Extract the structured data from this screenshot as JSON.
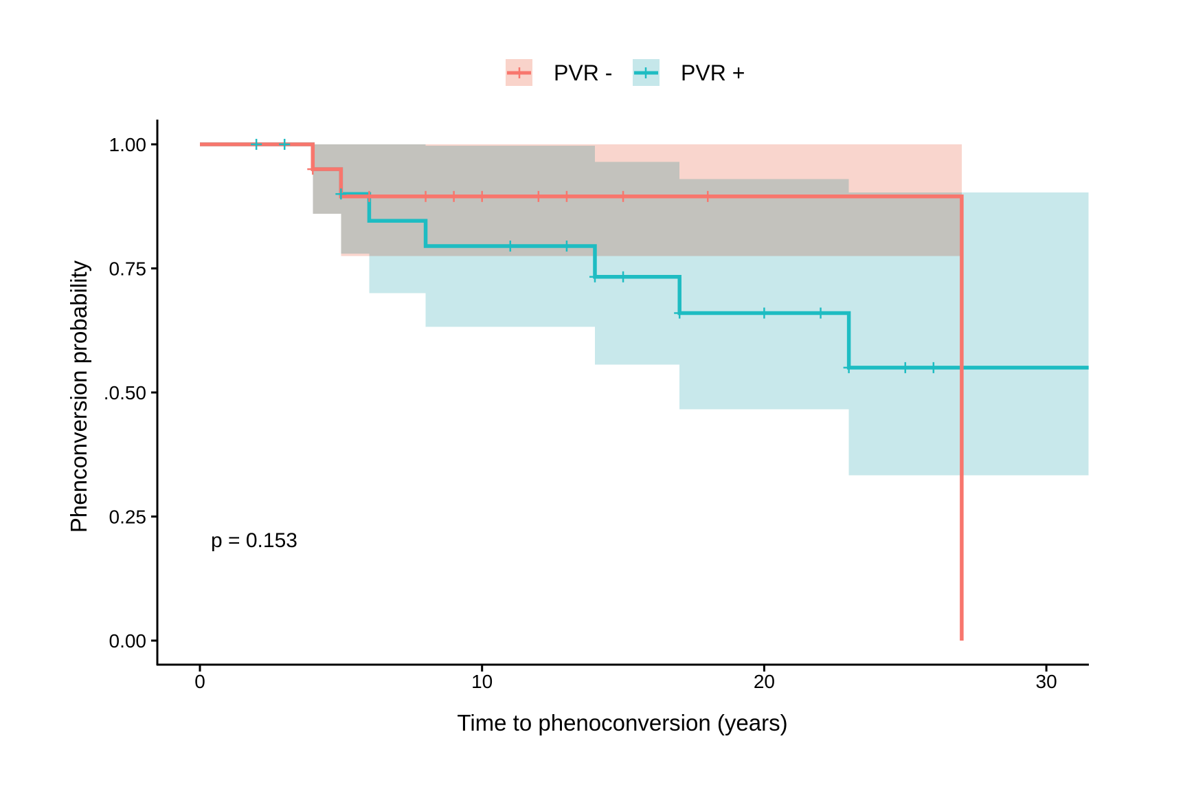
{
  "chart_data": {
    "type": "line",
    "subtype": "kaplan-meier step curve with confidence bands",
    "title": "",
    "xlabel": "Time to phenoconversion (years)",
    "ylabel": "Phenconversion probability",
    "xlim": [
      -1.5,
      31.5
    ],
    "ylim": [
      -0.05,
      1.05
    ],
    "xticks": [
      0,
      10,
      20,
      30
    ],
    "xtick_labels": [
      "0",
      "10",
      "20",
      "30"
    ],
    "yticks": [
      0,
      0.25,
      0.5,
      0.75,
      1.0
    ],
    "ytick_labels": [
      "0.00",
      "0.25",
      ".0.50",
      "0.75",
      "1.00"
    ],
    "grid": false,
    "legend": {
      "position": "top",
      "entries": [
        {
          "label": "PVR -",
          "color": "#F8766D",
          "fill": "#F9D3CA"
        },
        {
          "label": "PVR +",
          "color": "#1EBCC2",
          "fill": "#C5E7EA"
        }
      ]
    },
    "annotations": [
      {
        "text": "p = 0.153",
        "x": 0.5,
        "y": 0.2
      }
    ],
    "series": [
      {
        "name": "PVR -",
        "color": "#F8766D",
        "band_color": "#F9D3CA",
        "steps": [
          {
            "t": 0,
            "s": 1.0
          },
          {
            "t": 4,
            "s": 0.95
          },
          {
            "t": 5,
            "s": 0.895
          },
          {
            "t": 27,
            "s": 0.0
          }
        ],
        "end_time": 27,
        "censor_times": [
          4,
          6,
          8,
          9,
          10,
          12,
          13,
          15,
          18
        ],
        "ci": [
          {
            "t0": 4,
            "t1": 5,
            "lower": 0.86,
            "upper": 1.0
          },
          {
            "t0": 5,
            "t1": 27,
            "lower": 0.775,
            "upper": 1.0
          }
        ]
      },
      {
        "name": "PVR +",
        "color": "#1EBCC2",
        "band_color": "#C5E7EA",
        "steps": [
          {
            "t": 0,
            "s": 1.0
          },
          {
            "t": 4,
            "s": 0.95
          },
          {
            "t": 5,
            "s": 0.9
          },
          {
            "t": 6,
            "s": 0.846
          },
          {
            "t": 8,
            "s": 0.795
          },
          {
            "t": 14,
            "s": 0.733
          },
          {
            "t": 17,
            "s": 0.66
          },
          {
            "t": 23,
            "s": 0.55
          }
        ],
        "end_time": 31.5,
        "censor_times": [
          2,
          3,
          5,
          11,
          13,
          14,
          15,
          17,
          20,
          22,
          23,
          25,
          26
        ],
        "ci": [
          {
            "t0": 4,
            "t1": 5,
            "lower": 0.86,
            "upper": 1.0
          },
          {
            "t0": 5,
            "t1": 6,
            "lower": 0.78,
            "upper": 1.0
          },
          {
            "t0": 6,
            "t1": 8,
            "lower": 0.7,
            "upper": 1.0
          },
          {
            "t0": 8,
            "t1": 14,
            "lower": 0.632,
            "upper": 0.997
          },
          {
            "t0": 14,
            "t1": 17,
            "lower": 0.556,
            "upper": 0.965
          },
          {
            "t0": 17,
            "t1": 23,
            "lower": 0.466,
            "upper": 0.93
          },
          {
            "t0": 23,
            "t1": 31.5,
            "lower": 0.333,
            "upper": 0.903
          }
        ]
      }
    ]
  }
}
